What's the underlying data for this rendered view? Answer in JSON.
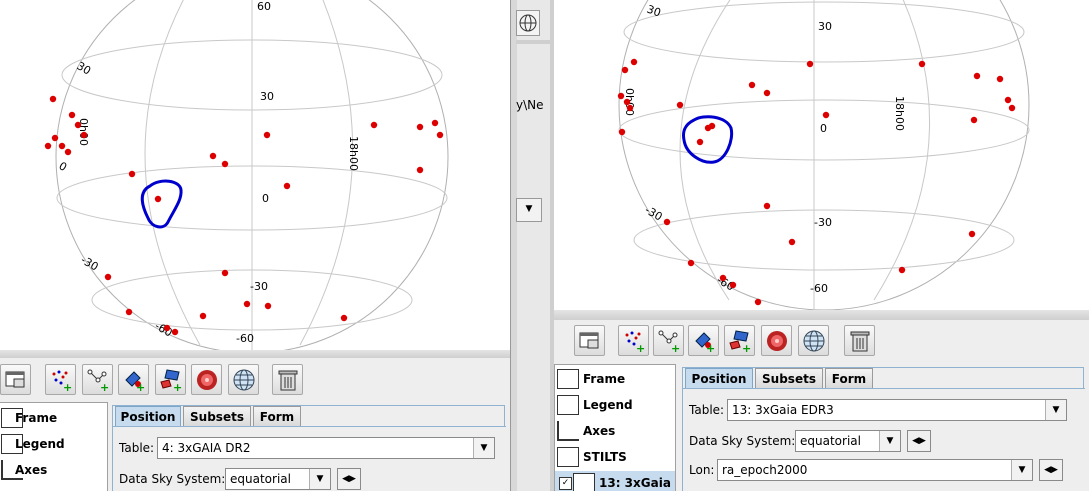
{
  "left": {
    "plot": {
      "lat_labels": [
        "60",
        "30",
        "30",
        "0",
        "0",
        "-30",
        "-30",
        "-60",
        "-60"
      ],
      "lon_labels": [
        "0h00",
        "18h00"
      ]
    },
    "toolbar_icons": [
      "frame-window-icon",
      "scatter-layer-icon",
      "pair-layer-icon",
      "mark-layer-icon",
      "area-layer-icon",
      "density-layer-icon",
      "sky-grid-icon",
      "delete-icon"
    ],
    "list": [
      "Frame",
      "Legend",
      "Axes"
    ],
    "tabs": [
      "Position",
      "Subsets",
      "Form"
    ],
    "table_label": "Table:",
    "table_value": "4: 3xGAIA DR2",
    "sky_label": "Data Sky System:",
    "sky_value": "equatorial"
  },
  "right": {
    "plot": {
      "lat_labels": [
        "30",
        "30",
        "0",
        "-30",
        "-30",
        "-60",
        "-60"
      ],
      "lon_labels": [
        "0h00",
        "18h00"
      ]
    },
    "list": [
      "Frame",
      "Legend",
      "Axes",
      "STILTS",
      "13: 3xGaia"
    ],
    "tabs": [
      "Position",
      "Subsets",
      "Form"
    ],
    "table_label": "Table:",
    "table_value": "13: 3xGaia EDR3",
    "sky_label": "Data Sky System:",
    "sky_value": "equatorial",
    "lon_label": "Lon:",
    "lon_value": "ra_epoch2000"
  },
  "middle": {
    "partial_text": "y\\Ne"
  },
  "colors": {
    "points": "#dd0000",
    "outline": "#0000cc",
    "selected_tab": "#c6dcee"
  }
}
